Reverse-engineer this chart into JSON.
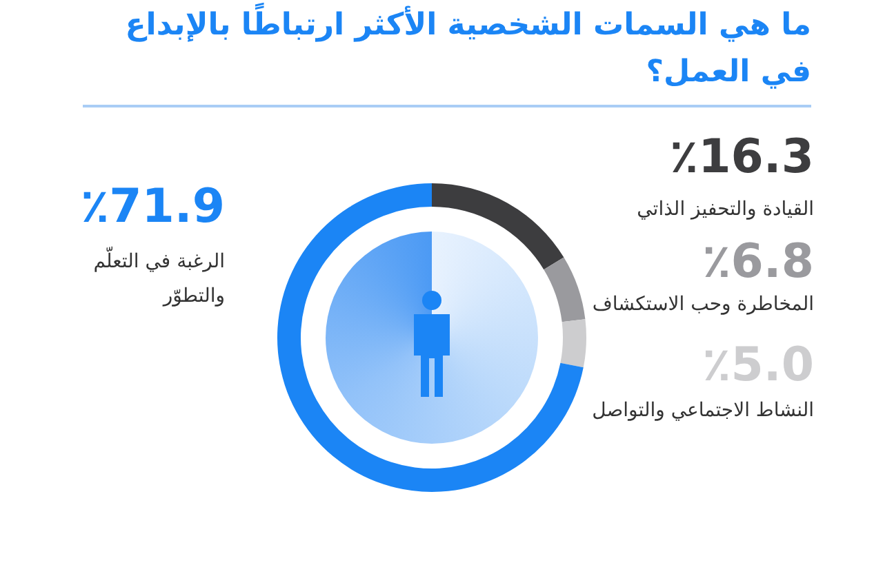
{
  "chart_data": {
    "type": "donut",
    "title": "ما هي السمات الشخصية الأكثر ارتباطًا بالإبداع في العمل؟",
    "categories": [
      "القيادة والتحفيز الذاتي",
      "المخاطرة وحب الاستكشاف",
      "النشاط الاجتماعي والتواصل",
      "الرغبة في التعلّم والتطوّر"
    ],
    "values": [
      16.3,
      6.8,
      5.0,
      71.9
    ],
    "value_labels": [
      "٪16.3",
      "٪6.8",
      "٪5.0",
      "٪71.9"
    ],
    "colors": [
      "#3d3d3f",
      "#9a9a9e",
      "#cdcdcf",
      "#1b85f5"
    ]
  }
}
